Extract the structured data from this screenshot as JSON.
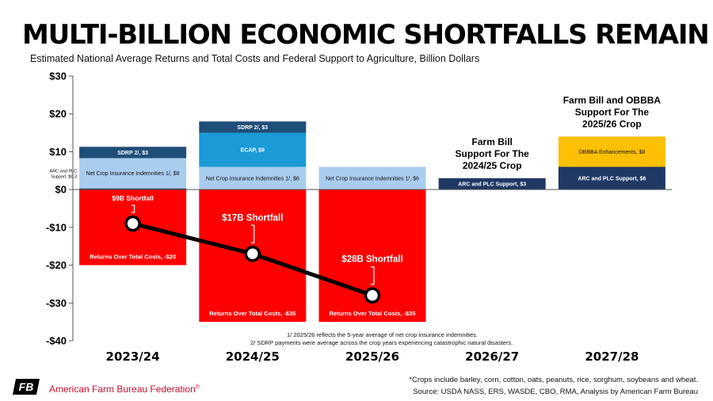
{
  "page": {
    "title": "MULTI-BILLION ECONOMIC SHORTFALLS REMAIN",
    "subtitle": "Estimated National Average Returns and Total Costs and Federal Support to Agriculture, Billion Dollars",
    "footnote1": "1/ 2025/26 reflects the 5-year average of net crop insurance indemnities.",
    "footnote2": "2/ SDRP payments were average across the crop years experiencing catastrophic natural disasters.",
    "crops_note": "*Crops include barley, corn, cotton, oats, peanuts, rice, sorghum, soybeans and wheat.",
    "source": "Source: USDA NASS, ERS, WASDE, CBO, RMA, Analysis by American Farm Bureau",
    "org_name": "American Farm Bureau Federation",
    "org_trademark": "®",
    "logo_text": "FB"
  },
  "colors": {
    "returns": "#ff0000",
    "insurance": "#a9cdee",
    "sdrp": "#1f4e79",
    "ecap": "#1a9ad6",
    "arc_plc": "#1f3864",
    "obbba": "#fec005",
    "shortfall_line": "#000000",
    "brand_red": "#c8102e"
  },
  "chart_data": {
    "type": "bar",
    "stacked": true,
    "categories": [
      "2023/24",
      "2024/25",
      "2025/26",
      "2026/27",
      "2027/28"
    ],
    "ylim": [
      -40,
      30
    ],
    "yticks": [
      30,
      20,
      10,
      0,
      -10,
      -20,
      -30,
      -40
    ],
    "ytick_labels": [
      "$30",
      "$20",
      "$10",
      "$0",
      "-$10",
      "-$20",
      "-$30",
      "-$40"
    ],
    "grid": false,
    "segments": [
      {
        "category": "2023/24",
        "base": 0,
        "value": -20,
        "color_key": "returns",
        "label": "Returns Over Total Costs, -$20"
      },
      {
        "category": "2023/24",
        "base": 0,
        "value": 0.3,
        "color_key": "arc_plc",
        "label": "ARC and PLC Support, $0.3"
      },
      {
        "category": "2023/24",
        "base": 0.3,
        "value": 8,
        "color_key": "insurance",
        "label": "Net Crop Insurance Indemnities 1/, $8"
      },
      {
        "category": "2023/24",
        "base": 8.3,
        "value": 3,
        "color_key": "sdrp",
        "label": "SDRP 2/, $3"
      },
      {
        "category": "2024/25",
        "base": 0,
        "value": -35,
        "color_key": "returns",
        "label": "Returns Over Total Costs, -$35"
      },
      {
        "category": "2024/25",
        "base": 0,
        "value": 6,
        "color_key": "insurance",
        "label": "Net Crop Insurance Indemnities 1/, $6"
      },
      {
        "category": "2024/25",
        "base": 6,
        "value": 9,
        "color_key": "ecap",
        "label": "ECAP, $9"
      },
      {
        "category": "2024/25",
        "base": 15,
        "value": 3,
        "color_key": "sdrp",
        "label": "SDRP 2/, $3"
      },
      {
        "category": "2025/26",
        "base": 0,
        "value": -35,
        "color_key": "returns",
        "label": "Returns Over Total Costs, -$35"
      },
      {
        "category": "2025/26",
        "base": 0,
        "value": 6,
        "color_key": "insurance",
        "label": "Net Crop Insurance Indemnities 1/, $6"
      },
      {
        "category": "2026/27",
        "base": 0,
        "value": 3,
        "color_key": "arc_plc",
        "label": "ARC and PLC Support, $3"
      },
      {
        "category": "2027/28",
        "base": 0,
        "value": 6,
        "color_key": "arc_plc",
        "label": "ARC and PLC Support, $6"
      },
      {
        "category": "2027/28",
        "base": 6,
        "value": 8,
        "color_key": "obbba",
        "label": "OBBBA Enhancements, $8"
      }
    ],
    "shortfall_series": {
      "categories": [
        "2023/24",
        "2024/25",
        "2025/26"
      ],
      "values": [
        -9,
        -17,
        -28
      ],
      "labels": [
        "$9B Shortfall",
        "$17B Shortfall",
        "$28B Shortfall"
      ]
    },
    "annotations": [
      {
        "category": "2026/27",
        "lines": [
          "Farm Bill",
          "Support For The",
          "2024/25 Crop"
        ]
      },
      {
        "category": "2027/28",
        "lines": [
          "Farm Bill and OBBBA",
          "Support For The",
          "2025/26 Crop"
        ]
      }
    ]
  }
}
